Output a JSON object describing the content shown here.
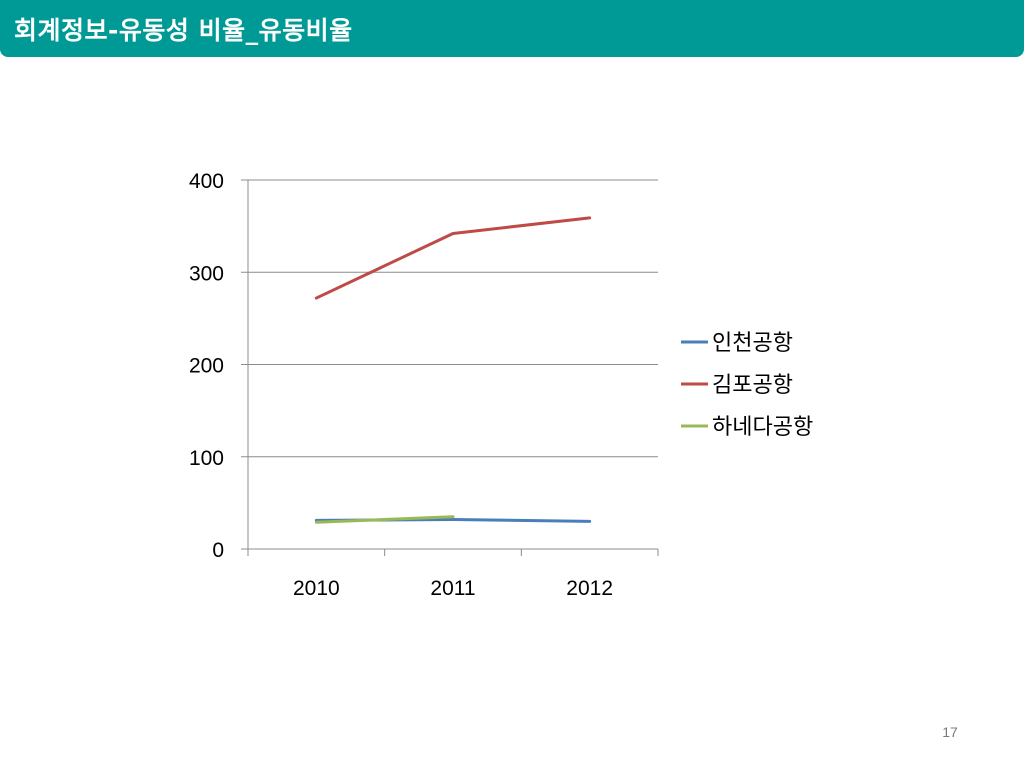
{
  "slide": {
    "title": "회계정보-유동성 비율_유동비율",
    "page_number": "17"
  },
  "chart_data": {
    "type": "line",
    "categories": [
      "2010",
      "2011",
      "2012"
    ],
    "ylim": [
      0,
      400
    ],
    "yticks": [
      "0",
      "100",
      "200",
      "300",
      "400"
    ],
    "grid": true,
    "legend_position": "right",
    "series": [
      {
        "name": "인천공항",
        "color": "#4a7ebb",
        "values": [
          31,
          32,
          30
        ]
      },
      {
        "name": "김포공항",
        "color": "#be4b48",
        "values": [
          272,
          342,
          359
        ]
      },
      {
        "name": "하네다공항",
        "color": "#98b954",
        "values": [
          29,
          35,
          null
        ]
      }
    ]
  }
}
